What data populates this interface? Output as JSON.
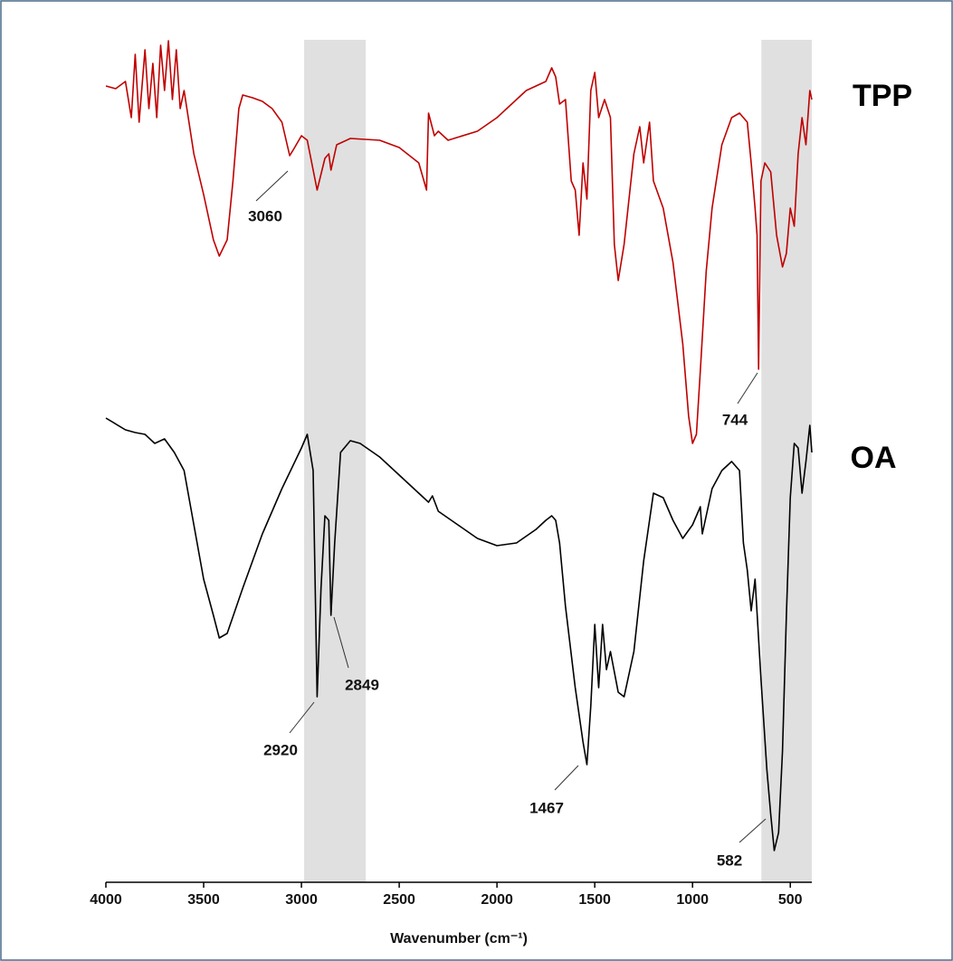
{
  "chart_data": {
    "type": "line",
    "x_label": "Wavenumber (cm⁻¹)",
    "xlim": [
      4000,
      390
    ],
    "xticks": [
      4000,
      3500,
      3000,
      2500,
      2000,
      1500,
      1000,
      500
    ],
    "ylim": [
      0,
      935
    ],
    "shaded_regions": [
      [
        2986,
        2671
      ],
      [
        648,
        390
      ]
    ],
    "shade_color": "#e0e0e0",
    "series": [
      {
        "name": "TPP",
        "color": "#c00000",
        "annotations": [
          "3060",
          "744"
        ],
        "x": [
          4000,
          3950,
          3900,
          3870,
          3850,
          3830,
          3800,
          3780,
          3760,
          3740,
          3720,
          3700,
          3680,
          3660,
          3640,
          3620,
          3600,
          3550,
          3500,
          3450,
          3420,
          3380,
          3350,
          3320,
          3300,
          3250,
          3200,
          3150,
          3100,
          3060,
          3040,
          3000,
          2970,
          2920,
          2880,
          2860,
          2849,
          2820,
          2750,
          2600,
          2500,
          2400,
          2360,
          2350,
          2320,
          2300,
          2250,
          2100,
          2000,
          1900,
          1850,
          1800,
          1750,
          1720,
          1700,
          1680,
          1650,
          1620,
          1600,
          1580,
          1560,
          1540,
          1520,
          1500,
          1480,
          1450,
          1420,
          1400,
          1380,
          1350,
          1300,
          1270,
          1250,
          1220,
          1200,
          1150,
          1100,
          1050,
          1020,
          1000,
          980,
          960,
          930,
          900,
          850,
          800,
          760,
          720,
          700,
          680,
          670,
          662,
          650,
          630,
          600,
          570,
          540,
          520,
          500,
          480,
          460,
          440,
          420,
          400,
          390
        ],
        "values": [
          880,
          877,
          885,
          845,
          915,
          840,
          920,
          855,
          905,
          845,
          925,
          875,
          930,
          865,
          920,
          855,
          875,
          805,
          760,
          710,
          692,
          710,
          775,
          855,
          870,
          867,
          863,
          855,
          840,
          803,
          810,
          825,
          820,
          765,
          800,
          805,
          787,
          815,
          822,
          820,
          812,
          795,
          765,
          850,
          825,
          830,
          820,
          830,
          845,
          865,
          875,
          880,
          885,
          900,
          890,
          860,
          865,
          775,
          765,
          715,
          795,
          755,
          875,
          895,
          845,
          865,
          845,
          705,
          665,
          705,
          805,
          835,
          795,
          840,
          775,
          745,
          685,
          595,
          515,
          485,
          495,
          565,
          675,
          745,
          815,
          845,
          850,
          840,
          795,
          745,
          715,
          567,
          775,
          795,
          785,
          715,
          680,
          695,
          745,
          725,
          805,
          845,
          815,
          875,
          865
        ]
      },
      {
        "name": "OA",
        "color": "#000000",
        "annotations": [
          "2920",
          "2849",
          "1467",
          "582"
        ],
        "x": [
          4000,
          3900,
          3850,
          3800,
          3750,
          3700,
          3650,
          3600,
          3550,
          3500,
          3450,
          3420,
          3380,
          3300,
          3200,
          3100,
          3000,
          2970,
          2940,
          2920,
          2900,
          2880,
          2860,
          2849,
          2830,
          2800,
          2750,
          2700,
          2600,
          2500,
          2400,
          2350,
          2330,
          2300,
          2200,
          2100,
          2000,
          1900,
          1800,
          1750,
          1720,
          1700,
          1680,
          1650,
          1600,
          1560,
          1540,
          1520,
          1500,
          1480,
          1460,
          1440,
          1420,
          1380,
          1350,
          1300,
          1250,
          1200,
          1150,
          1100,
          1050,
          1000,
          960,
          950,
          900,
          850,
          800,
          760,
          740,
          720,
          700,
          680,
          650,
          620,
          600,
          582,
          560,
          540,
          520,
          500,
          480,
          460,
          440,
          420,
          400,
          390
        ],
        "values": [
          513,
          500,
          497,
          495,
          485,
          490,
          475,
          455,
          395,
          335,
          295,
          270,
          275,
          325,
          385,
          435,
          480,
          495,
          455,
          205,
          325,
          405,
          400,
          295,
          375,
          475,
          488,
          485,
          470,
          450,
          430,
          420,
          427,
          410,
          395,
          380,
          372,
          375,
          390,
          400,
          405,
          400,
          375,
          305,
          215,
          155,
          130,
          195,
          285,
          215,
          285,
          235,
          255,
          210,
          205,
          255,
          355,
          430,
          425,
          400,
          380,
          395,
          415,
          385,
          435,
          455,
          465,
          455,
          375,
          345,
          300,
          335,
          225,
          125,
          75,
          35,
          55,
          145,
          295,
          425,
          485,
          480,
          430,
          465,
          505,
          475
        ]
      }
    ]
  }
}
